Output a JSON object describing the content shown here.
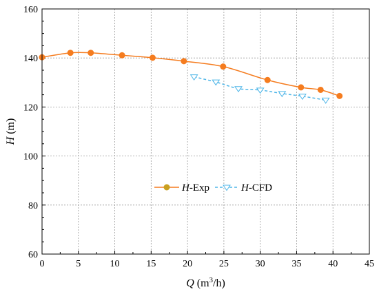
{
  "chart_data": {
    "type": "line",
    "xlabel": {
      "var": "Q",
      "prefix": " (m",
      "sup": "3",
      "suffix": "/h)"
    },
    "ylabel": {
      "var": "H",
      "suffix": " (m)"
    },
    "xlim": [
      0,
      45
    ],
    "ylim": [
      60,
      160
    ],
    "xticks": [
      "0",
      "5",
      "10",
      "15",
      "20",
      "25",
      "30",
      "35",
      "40",
      "45"
    ],
    "yticks": [
      "60",
      "80",
      "100",
      "120",
      "140",
      "160"
    ],
    "grid": true,
    "legend_position": "center",
    "series": [
      {
        "name": "H-Exp",
        "legend_var": "H",
        "legend_suffix": "-Exp",
        "color": "#F57C1F",
        "marker": "circle",
        "line": "solid",
        "x": [
          0,
          3.9,
          6.7,
          11.0,
          15.2,
          19.5,
          24.9,
          31.0,
          35.6,
          38.3,
          40.9
        ],
        "y": [
          140.3,
          142.1,
          142.1,
          141.1,
          140.1,
          138.7,
          136.5,
          131.0,
          128.0,
          127.0,
          124.5
        ]
      },
      {
        "name": "H-CFD",
        "legend_var": "H",
        "legend_suffix": "-CFD",
        "color": "#4FB6E8",
        "marker": "triangle-down-open",
        "line": "dashed",
        "x": [
          20.9,
          23.9,
          27.0,
          30.0,
          33.0,
          35.8,
          39.0
        ],
        "y": [
          132.3,
          130.2,
          127.5,
          126.9,
          125.5,
          124.4,
          122.8
        ]
      }
    ]
  }
}
